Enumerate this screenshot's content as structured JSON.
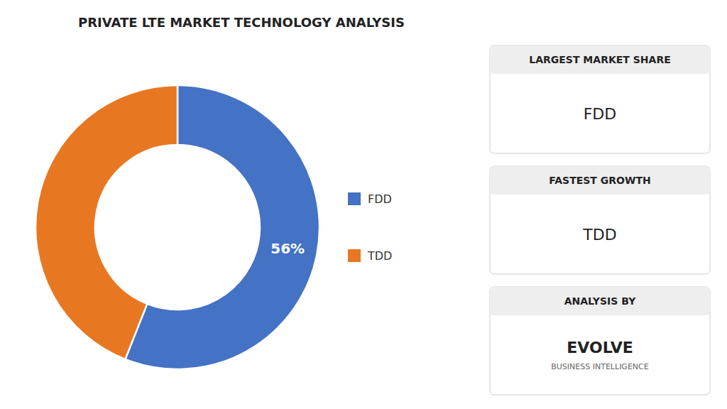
{
  "chart_data": {
    "type": "donut",
    "title": "PRIVATE LTE MARKET TECHNOLOGY ANALYSIS",
    "categories": [
      "FDD",
      "TDD"
    ],
    "values": [
      56,
      44
    ],
    "colors": [
      "#4472c4",
      "#e87722"
    ],
    "data_labels": true,
    "value_labels": [
      "56%",
      null
    ],
    "legend": "right",
    "annotations": [
      {
        "title": "LARGEST MARKET SHARE",
        "text": [
          "FDD"
        ]
      },
      {
        "title": "FASTEST GROWTH",
        "text": [
          "TDD"
        ]
      },
      {
        "title": "ANALYSIS BY",
        "text": [
          "EVOLVE",
          "BUSINESS INTELLIGENCE"
        ]
      }
    ]
  }
}
